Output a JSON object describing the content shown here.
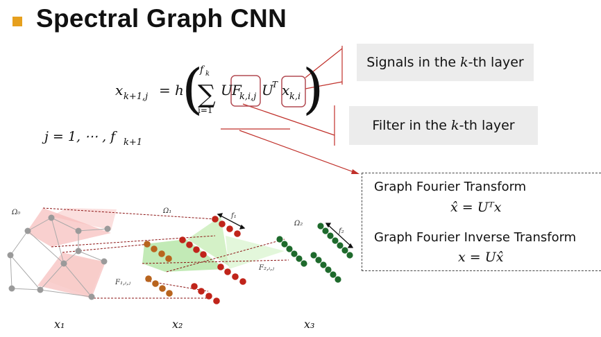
{
  "slide": {
    "title": "Spectral Graph CNN",
    "accent_color": "#e6a01e"
  },
  "formula": {
    "lhs": "x",
    "lhs_sub": "k+1,j",
    "equals": "=",
    "func": "h",
    "sum_upper": "f",
    "sum_upper_sub": "k",
    "sum_lower": "i=1",
    "term_U": "U",
    "term_F": "F",
    "term_F_sub": "k,i,j",
    "term_UT": "U",
    "term_UT_sup": "T",
    "term_x": "x",
    "term_x_sub": "k,i",
    "index_line": "j = 1, ⋯ , f",
    "index_line_sub": "k+1"
  },
  "callouts": {
    "signals_prefix": "Signals in the ",
    "signals_var": "k",
    "signals_suffix": "-th layer",
    "filter_prefix": "Filter in the ",
    "filter_var": "k",
    "filter_suffix": "-th layer"
  },
  "fourier": {
    "forward_label": "Graph Fourier Transform",
    "forward_eq": "x̂ = Uᵀx",
    "inverse_label": "Graph Fourier Inverse Transform",
    "inverse_eq": "x = Ux̂"
  },
  "diagram": {
    "labels": {
      "omega0": "Ω₀",
      "omega1": "Ω₁",
      "omega2": "Ω₂",
      "f1": "f₁",
      "f2": "f₂",
      "F1": "F₁,ᵢ,ⱼ",
      "F2": "F₂,ᵢ,ⱼ",
      "x1": "x₁",
      "x2": "x₂",
      "x3": "x₃"
    },
    "colors": {
      "node_gray": "#9a9a9a",
      "node_red": "#c0241a",
      "node_orange": "#b8641e",
      "node_green": "#1e6a2c",
      "fill_pink": "#f4a9a8",
      "fill_green": "#8fd97a",
      "dash_red": "#b01010"
    }
  }
}
